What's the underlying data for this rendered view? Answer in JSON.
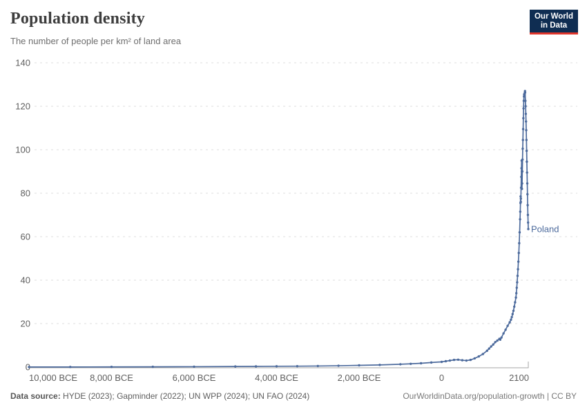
{
  "header": {
    "title": "Population density",
    "subtitle": "The number of people per km² of land area"
  },
  "logo": {
    "line1": "Our World",
    "line2": "in Data",
    "bg_color": "#0f2d52",
    "accent_color": "#e0362c"
  },
  "chart_data": {
    "type": "line",
    "title": "Population density",
    "xlabel": "",
    "ylabel": "",
    "xlim": [
      -10000,
      2100
    ],
    "ylim": [
      0,
      140
    ],
    "grid": "horizontal-dashed",
    "grid_color": "#dcdcdc",
    "axis_color": "#a6a6a6",
    "tick_label_color": "#5e5e5e",
    "y_ticks": [
      0,
      20,
      40,
      60,
      80,
      100,
      120,
      140
    ],
    "x_ticks": [
      {
        "value": -10000,
        "label": "10,000 BCE",
        "anchor": "start"
      },
      {
        "value": -8000,
        "label": "8,000 BCE",
        "anchor": "middle"
      },
      {
        "value": -6000,
        "label": "6,000 BCE",
        "anchor": "middle"
      },
      {
        "value": -4000,
        "label": "4,000 BCE",
        "anchor": "middle"
      },
      {
        "value": -2000,
        "label": "2,000 BCE",
        "anchor": "middle"
      },
      {
        "value": 0,
        "label": "0",
        "anchor": "middle"
      },
      {
        "value": 2100,
        "label": "2100",
        "anchor": "end"
      }
    ],
    "legend_position": "end-of-line",
    "series": [
      {
        "name": "Poland",
        "color": "#4c6a9c",
        "end_label": "Poland",
        "points": [
          [
            -10000,
            0.03
          ],
          [
            -9000,
            0.05
          ],
          [
            -8000,
            0.08
          ],
          [
            -7000,
            0.12
          ],
          [
            -6000,
            0.18
          ],
          [
            -5000,
            0.28
          ],
          [
            -4500,
            0.32
          ],
          [
            -4000,
            0.38
          ],
          [
            -3500,
            0.42
          ],
          [
            -3000,
            0.5
          ],
          [
            -2500,
            0.62
          ],
          [
            -2000,
            0.8
          ],
          [
            -1500,
            1.0
          ],
          [
            -1000,
            1.3
          ],
          [
            -750,
            1.5
          ],
          [
            -500,
            1.75
          ],
          [
            -250,
            2.1
          ],
          [
            0,
            2.4
          ],
          [
            100,
            2.7
          ],
          [
            200,
            3.0
          ],
          [
            300,
            3.3
          ],
          [
            400,
            3.4
          ],
          [
            500,
            3.15
          ],
          [
            600,
            3.0
          ],
          [
            700,
            3.3
          ],
          [
            800,
            4.0
          ],
          [
            900,
            4.9
          ],
          [
            1000,
            6.0
          ],
          [
            1100,
            7.5
          ],
          [
            1150,
            8.5
          ],
          [
            1200,
            9.5
          ],
          [
            1250,
            10.4
          ],
          [
            1300,
            11.5
          ],
          [
            1350,
            12.2
          ],
          [
            1400,
            13.0
          ],
          [
            1420,
            12.6
          ],
          [
            1450,
            13.6
          ],
          [
            1500,
            15.5
          ],
          [
            1550,
            17.2
          ],
          [
            1600,
            19.0
          ],
          [
            1650,
            20.6
          ],
          [
            1680,
            21.8
          ],
          [
            1700,
            23.0
          ],
          [
            1720,
            24.4
          ],
          [
            1740,
            25.9
          ],
          [
            1760,
            27.8
          ],
          [
            1780,
            29.8
          ],
          [
            1800,
            32.0
          ],
          [
            1810,
            34.0
          ],
          [
            1820,
            36.5
          ],
          [
            1830,
            39.0
          ],
          [
            1840,
            42.0
          ],
          [
            1850,
            45.0
          ],
          [
            1860,
            48.5
          ],
          [
            1870,
            52.5
          ],
          [
            1880,
            57.0
          ],
          [
            1890,
            62.0
          ],
          [
            1900,
            68.0
          ],
          [
            1905,
            71.5
          ],
          [
            1910,
            75.5
          ],
          [
            1914,
            78.5
          ],
          [
            1918,
            76.0
          ],
          [
            1920,
            77.5
          ],
          [
            1925,
            82.5
          ],
          [
            1930,
            87.5
          ],
          [
            1935,
            91.5
          ],
          [
            1939,
            95.0
          ],
          [
            1943,
            90.0
          ],
          [
            1946,
            82.0
          ],
          [
            1950,
            84.5
          ],
          [
            1955,
            90.0
          ],
          [
            1960,
            95.5
          ],
          [
            1965,
            100.5
          ],
          [
            1970,
            104.5
          ],
          [
            1975,
            109.5
          ],
          [
            1980,
            114.5
          ],
          [
            1985,
            119.0
          ],
          [
            1990,
            122.5
          ],
          [
            1995,
            124.5
          ],
          [
            2000,
            125.5
          ],
          [
            2005,
            125.0
          ],
          [
            2010,
            125.5
          ],
          [
            2015,
            126.2
          ],
          [
            2020,
            127.0
          ],
          [
            2023,
            126.3
          ],
          [
            2030,
            122.5
          ],
          [
            2035,
            120.0
          ],
          [
            2040,
            116.5
          ],
          [
            2045,
            113.0
          ],
          [
            2050,
            109.0
          ],
          [
            2055,
            104.5
          ],
          [
            2060,
            99.5
          ],
          [
            2065,
            94.5
          ],
          [
            2070,
            89.5
          ],
          [
            2075,
            84.5
          ],
          [
            2080,
            79.5
          ],
          [
            2085,
            74.5
          ],
          [
            2090,
            70.0
          ],
          [
            2095,
            66.5
          ],
          [
            2100,
            63.5
          ]
        ]
      }
    ]
  },
  "footer": {
    "source_label": "Data source:",
    "source_text": " HYDE (2023); Gapminder (2022); UN WPP (2024); UN FAO (2024)",
    "link_text": "OurWorldinData.org/population-growth | CC BY"
  }
}
